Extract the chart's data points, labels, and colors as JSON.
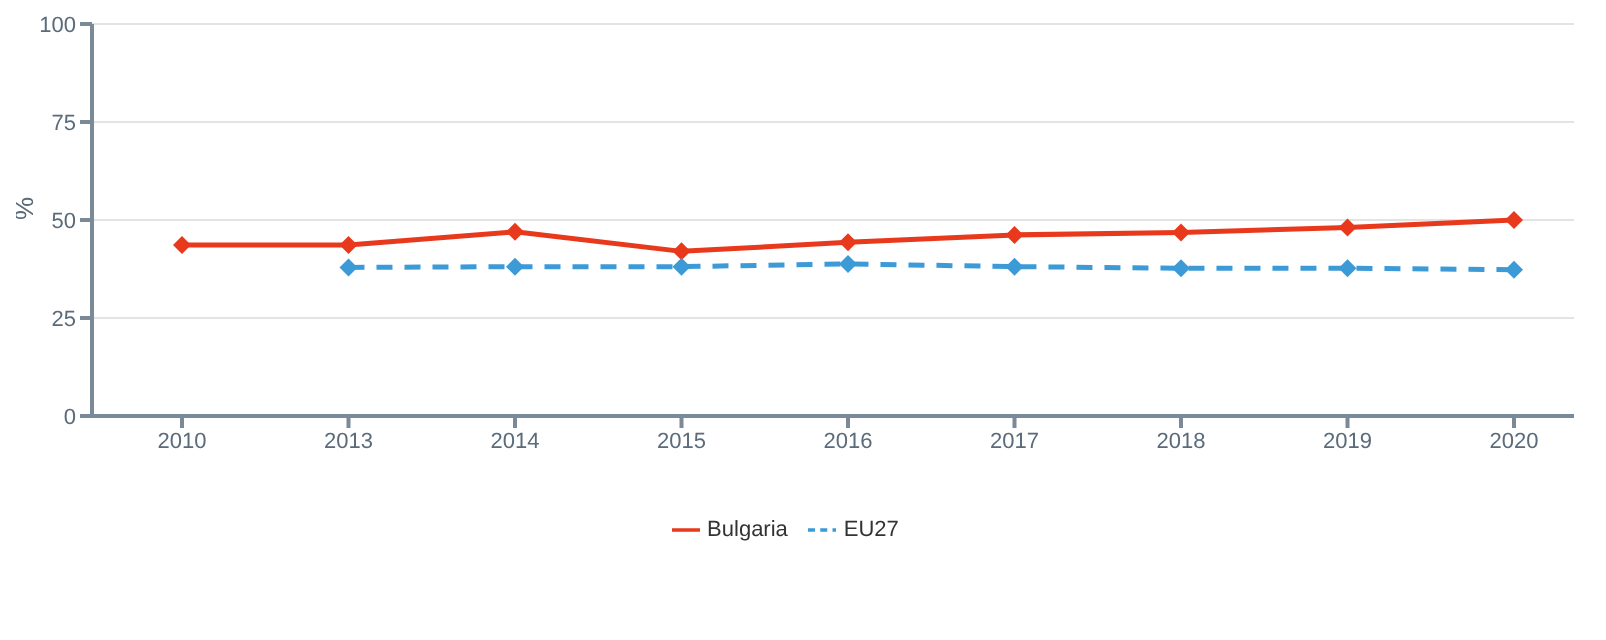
{
  "chart_data": {
    "type": "line",
    "ylabel": "%",
    "categories": [
      "2010",
      "2013",
      "2014",
      "2015",
      "2016",
      "2017",
      "2018",
      "2019",
      "2020"
    ],
    "series": [
      {
        "name": "Bulgaria",
        "color": "#e8391d",
        "line_style": "solid",
        "values": [
          43.6,
          43.6,
          47,
          42,
          44.3,
          46.2,
          46.8,
          48.1,
          50
        ]
      },
      {
        "name": "EU27",
        "color": "#3c9ad6",
        "line_style": "dashed",
        "values": [
          null,
          37.9,
          38.1,
          38.1,
          38.8,
          38.1,
          37.7,
          37.7,
          37.3
        ]
      }
    ],
    "ylim": [
      0,
      100
    ],
    "yticks": [
      0,
      25,
      50,
      75,
      100
    ],
    "grid": "y",
    "legend": "bottom",
    "marker": "diamond"
  }
}
